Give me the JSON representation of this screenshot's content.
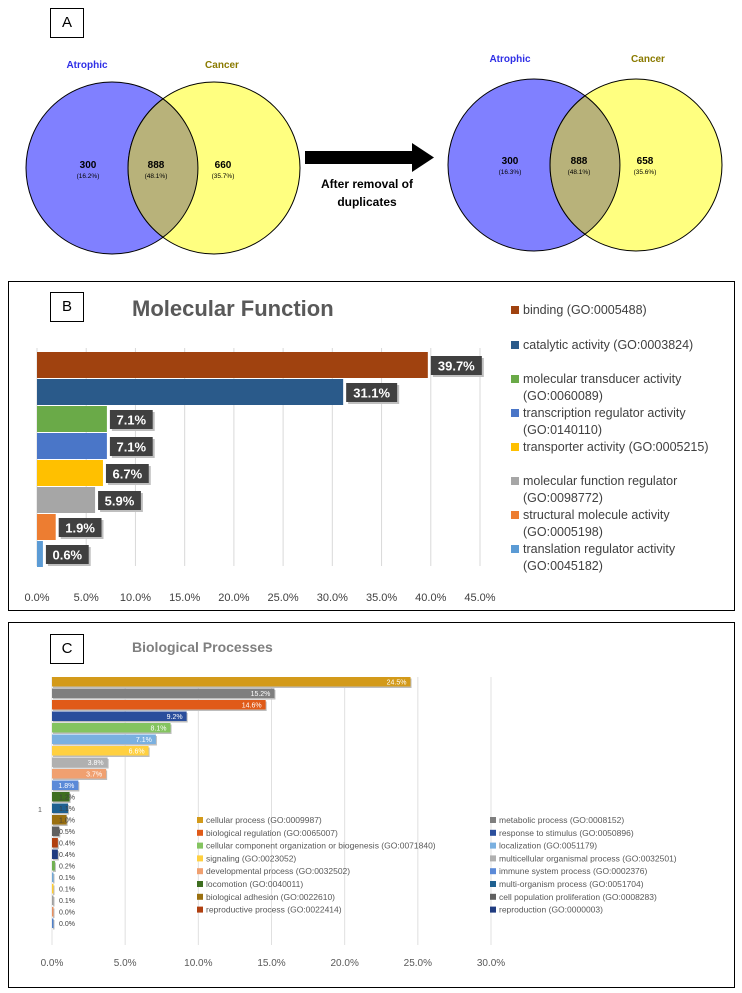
{
  "panel_labels": {
    "a": "A",
    "b": "B",
    "c": "C"
  },
  "venn_a": {
    "set1": "Atrophic",
    "set2": "Cancer",
    "left": "300",
    "left_pct": "(16.2%)",
    "mid": "888",
    "mid_pct": "(48.1%)",
    "right": "660",
    "right_pct": "(35.7%)"
  },
  "arrow_text": [
    "After removal of",
    "duplicates"
  ],
  "venn_b": {
    "set1": "Atrophic",
    "set2": "Cancer",
    "left": "300",
    "left_pct": "(16.3%)",
    "mid": "888",
    "mid_pct": "(48.1%)",
    "right": "658",
    "right_pct": "(35.6%)"
  },
  "colors": {
    "venn_left": "#8080ff",
    "venn_right": "#ffff80",
    "venn_mid": "#b8b27a",
    "set1_label": "#2e2ee6",
    "set2_label": "#8a7a00"
  },
  "chart_data": [
    {
      "type": "bar",
      "orientation": "horizontal",
      "title": "Molecular Function",
      "xlim": [
        0,
        45
      ],
      "xticks": [
        "0.0%",
        "5.0%",
        "10.0%",
        "15.0%",
        "20.0%",
        "25.0%",
        "30.0%",
        "35.0%",
        "40.0%",
        "45.0%"
      ],
      "categories": [
        "binding (GO:0005488)",
        "catalytic activity (GO:0003824)",
        "molecular transducer activity (GO:0060089)",
        "transcription regulator activity (GO:0140110)",
        "transporter activity (GO:0005215)",
        "molecular function regulator (GO:0098772)",
        "structural molecule activity (GO:0005198)",
        "translation regulator activity (GO:0045182)"
      ],
      "legend_lines": [
        [
          "binding (GO:0005488)"
        ],
        [
          "catalytic activity (GO:0003824)"
        ],
        [
          "molecular transducer activity",
          "(GO:0060089)"
        ],
        [
          "transcription regulator activity",
          "(GO:0140110)"
        ],
        [
          "transporter activity (GO:0005215)"
        ],
        [
          "molecular function regulator",
          "(GO:0098772)"
        ],
        [
          "structural molecule activity",
          "(GO:0005198)"
        ],
        [
          "translation regulator activity",
          "(GO:0045182)"
        ]
      ],
      "values": [
        39.7,
        31.1,
        7.1,
        7.1,
        6.7,
        5.9,
        1.9,
        0.6
      ],
      "labels": [
        "39.7%",
        "31.1%",
        "7.1%",
        "7.1%",
        "6.7%",
        "5.9%",
        "1.9%",
        "0.6%"
      ],
      "colors": [
        "#a0420f",
        "#2a5a8a",
        "#6aaa48",
        "#4a76c8",
        "#ffc000",
        "#a6a6a6",
        "#ed7d31",
        "#5b9bd5"
      ],
      "legend": "right"
    },
    {
      "type": "bar",
      "orientation": "horizontal",
      "title": "Biological Processes",
      "xlim": [
        0,
        30
      ],
      "xticks": [
        "0.0%",
        "5.0%",
        "10.0%",
        "15.0%",
        "20.0%",
        "25.0%",
        "30.0%"
      ],
      "y_tick": "1",
      "categories": [
        "cellular process (GO:0009987)",
        "metabolic process (GO:0008152)",
        "biological regulation (GO:0065007)",
        "response to stimulus (GO:0050896)",
        "cellular component organization or biogenesis (GO:0071840)",
        "localization (GO:0051179)",
        "signaling (GO:0023052)",
        "multicellular organismal process (GO:0032501)",
        "developmental process (GO:0032502)",
        "immune system process (GO:0002376)",
        "locomotion (GO:0040011)",
        "multi-organism process (GO:0051704)",
        "biological adhesion (GO:0022610)",
        "cell population proliferation (GO:0008283)",
        "reproductive process (GO:0022414)",
        "reproduction (GO:0000003)"
      ],
      "values": [
        24.5,
        15.2,
        14.6,
        9.2,
        8.1,
        7.1,
        6.6,
        3.8,
        3.7,
        1.8,
        1.2,
        1.1,
        1.0,
        0.5,
        0.4,
        0.4,
        0.2,
        0.1,
        0.1,
        0.1,
        0.0,
        0.0
      ],
      "labels": [
        "24.5%",
        "15.2%",
        "14.6%",
        "9.2%",
        "8.1%",
        "7.1%",
        "6.6%",
        "3.8%",
        "3.7%",
        "1.8%",
        "1.2%",
        "1.1%",
        "1.0%",
        "0.5%",
        "0.4%",
        "0.4%",
        "0.2%",
        "0.1%",
        "0.1%",
        "0.1%",
        "0.0%",
        "0.0%"
      ],
      "colors": [
        "#d39a1a",
        "#7f7f7f",
        "#e05a18",
        "#2a4e9c",
        "#84c460",
        "#7ab0e0",
        "#ffd040",
        "#b0b0b0",
        "#f0a070",
        "#5b8ad8",
        "#3e6e20",
        "#1e6090",
        "#9a7010",
        "#606060",
        "#b04010",
        "#203c80",
        "#70b050",
        "#70a8d8",
        "#ffcc30",
        "#a0a0a0",
        "#e89060",
        "#5080c8"
      ],
      "legend_colors": [
        "#d39a1a",
        "#7f7f7f",
        "#e05a18",
        "#2a4e9c",
        "#84c460",
        "#7ab0e0",
        "#ffd040",
        "#b0b0b0",
        "#f0a070",
        "#5b8ad8",
        "#3e6e20",
        "#1e6090",
        "#9a7010",
        "#606060",
        "#b04010",
        "#203c80"
      ],
      "legend": "inside"
    }
  ]
}
